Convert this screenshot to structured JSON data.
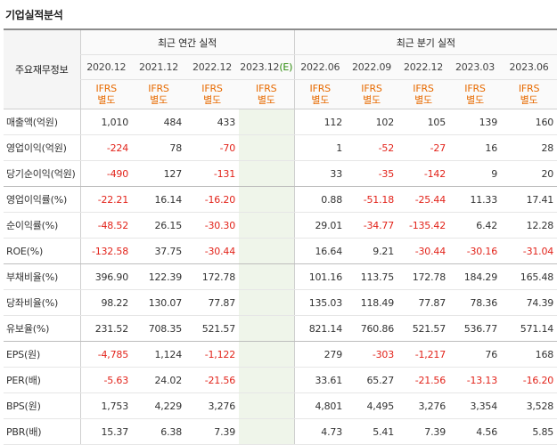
{
  "title": "기업실적분석",
  "header": {
    "row_label": "주요재무정보",
    "annual_label": "최근 연간 실적",
    "quarter_label": "최근 분기 실적",
    "annual_periods": [
      "2020.12",
      "2021.12",
      "2022.12"
    ],
    "estimate_period": "2023.12",
    "estimate_mark": "(E)",
    "quarter_periods": [
      "2022.06",
      "2022.09",
      "2022.12",
      "2023.03",
      "2023.06"
    ],
    "standard_line1": "IFRS",
    "standard_line2": "별도"
  },
  "colors": {
    "negative": "#e2231a",
    "standard": "#e76a00",
    "estimate_background": "#eff5ea",
    "estimate_mark": "#2b8a0a"
  },
  "rows": [
    {
      "label": "매출액(억원)",
      "values": [
        "1,010",
        "484",
        "433",
        "",
        "112",
        "102",
        "105",
        "139",
        "160"
      ]
    },
    {
      "label": "영업이익(억원)",
      "values": [
        "-224",
        "78",
        "-70",
        "",
        "1",
        "-52",
        "-27",
        "16",
        "28"
      ]
    },
    {
      "label": "당기순이익(억원)",
      "values": [
        "-490",
        "127",
        "-131",
        "",
        "33",
        "-35",
        "-142",
        "9",
        "20"
      ]
    },
    {
      "label": "영업이익률(%)",
      "values": [
        "-22.21",
        "16.14",
        "-16.20",
        "",
        "0.88",
        "-51.18",
        "-25.44",
        "11.33",
        "17.41"
      ]
    },
    {
      "label": "순이익률(%)",
      "values": [
        "-48.52",
        "26.15",
        "-30.30",
        "",
        "29.01",
        "-34.77",
        "-135.42",
        "6.42",
        "12.28"
      ]
    },
    {
      "label": "ROE(%)",
      "values": [
        "-132.58",
        "37.75",
        "-30.44",
        "",
        "16.64",
        "9.21",
        "-30.44",
        "-30.16",
        "-31.04"
      ]
    },
    {
      "label": "부채비율(%)",
      "values": [
        "396.90",
        "122.39",
        "172.78",
        "",
        "101.16",
        "113.75",
        "172.78",
        "184.29",
        "165.48"
      ]
    },
    {
      "label": "당좌비율(%)",
      "values": [
        "98.22",
        "130.07",
        "77.87",
        "",
        "135.03",
        "118.49",
        "77.87",
        "78.36",
        "74.39"
      ]
    },
    {
      "label": "유보율(%)",
      "values": [
        "231.52",
        "708.35",
        "521.57",
        "",
        "821.14",
        "760.86",
        "521.57",
        "536.77",
        "571.14"
      ]
    },
    {
      "label": "EPS(원)",
      "values": [
        "-4,785",
        "1,124",
        "-1,122",
        "",
        "279",
        "-303",
        "-1,217",
        "76",
        "168"
      ]
    },
    {
      "label": "PER(배)",
      "values": [
        "-5.63",
        "24.02",
        "-21.56",
        "",
        "33.61",
        "65.27",
        "-21.56",
        "-13.13",
        "-16.20"
      ]
    },
    {
      "label": "BPS(원)",
      "values": [
        "1,753",
        "4,229",
        "3,276",
        "",
        "4,801",
        "4,495",
        "3,276",
        "3,354",
        "3,528"
      ]
    },
    {
      "label": "PBR(배)",
      "values": [
        "15.37",
        "6.38",
        "7.39",
        "",
        "4.73",
        "5.41",
        "7.39",
        "4.56",
        "5.85"
      ]
    }
  ]
}
